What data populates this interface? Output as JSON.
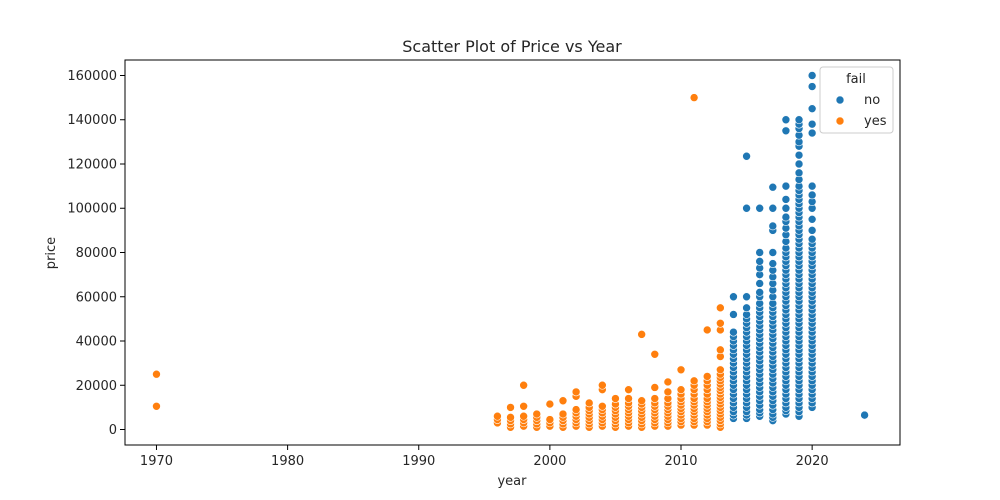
{
  "chart_data": {
    "type": "scatter",
    "title": "Scatter Plot of Price vs Year",
    "xlabel": "year",
    "ylabel": "price",
    "xlim": [
      1967.6,
      2026.7
    ],
    "ylim": [
      -7000,
      167000
    ],
    "xticks": [
      1970,
      1980,
      1990,
      2000,
      2010,
      2020
    ],
    "yticks": [
      0,
      20000,
      40000,
      60000,
      80000,
      100000,
      120000,
      140000,
      160000
    ],
    "grid": false,
    "legend": {
      "title": "fail",
      "placement": "top-right"
    },
    "series": [
      {
        "name": "no",
        "color": "#1f77b4",
        "columns": [
          {
            "year": 2014,
            "values": [
              5000,
              6500,
              8000,
              10000,
              12000,
              14000,
              16000,
              18000,
              20000,
              22000,
              24000,
              26000,
              28000,
              30000,
              32000,
              34000,
              36000,
              38000,
              40000,
              42000,
              44000,
              52000,
              60000
            ]
          },
          {
            "year": 2015,
            "values": [
              5000,
              6500,
              8000,
              10000,
              12000,
              14000,
              16000,
              18000,
              20000,
              22000,
              24000,
              26000,
              28000,
              30000,
              32000,
              34000,
              36000,
              38000,
              40000,
              42000,
              44000,
              46000,
              48000,
              50000,
              52000,
              55000,
              60000,
              100000,
              123500
            ]
          },
          {
            "year": 2016,
            "values": [
              6000,
              7500,
              9000,
              11000,
              13000,
              15000,
              17000,
              19000,
              21000,
              23000,
              25000,
              27000,
              29000,
              31000,
              33000,
              35000,
              37000,
              39000,
              41000,
              43000,
              45000,
              47000,
              49000,
              51000,
              53000,
              55000,
              57000,
              60000,
              62000,
              66000,
              70000,
              73000,
              76000,
              80000,
              100000
            ]
          },
          {
            "year": 2017,
            "values": [
              4000,
              5500,
              7000,
              9000,
              11000,
              13000,
              15000,
              17000,
              19000,
              21000,
              23000,
              25000,
              27000,
              29000,
              31000,
              33000,
              35000,
              37000,
              39000,
              41000,
              43000,
              45000,
              47000,
              49000,
              51000,
              53000,
              55000,
              57000,
              60000,
              63000,
              66000,
              69000,
              72000,
              75000,
              80000,
              90000,
              92000,
              100000,
              109500
            ]
          },
          {
            "year": 2018,
            "values": [
              7000,
              8500,
              10000,
              12000,
              14000,
              16000,
              18000,
              20000,
              22000,
              24000,
              26000,
              28000,
              30000,
              32000,
              34000,
              36000,
              38000,
              40000,
              42000,
              44000,
              46000,
              48000,
              50000,
              52000,
              54000,
              56000,
              58000,
              60000,
              62000,
              64000,
              66000,
              68000,
              70000,
              72000,
              74000,
              76000,
              78000,
              80000,
              82000,
              85000,
              88000,
              91000,
              94000,
              96000,
              100000,
              104000,
              110000,
              135000,
              140000
            ]
          },
          {
            "year": 2019,
            "values": [
              6000,
              8000,
              10000,
              12000,
              14000,
              16000,
              18000,
              20000,
              22000,
              24000,
              26000,
              28000,
              30000,
              32000,
              34000,
              36000,
              38000,
              40000,
              42000,
              44000,
              46000,
              48000,
              50000,
              52000,
              54000,
              56000,
              58000,
              60000,
              62000,
              64000,
              66000,
              68000,
              70000,
              72000,
              74000,
              76000,
              78000,
              80000,
              82000,
              84000,
              86000,
              88000,
              90000,
              92000,
              94000,
              96000,
              98000,
              100000,
              102000,
              104000,
              106000,
              108000,
              110000,
              113000,
              116000,
              120000,
              124000,
              128000,
              130000,
              133000,
              136000,
              138000,
              140000
            ]
          },
          {
            "year": 2020,
            "values": [
              10000,
              12000,
              14000,
              16000,
              18000,
              20000,
              22000,
              24000,
              26000,
              28000,
              30000,
              32000,
              34000,
              36000,
              38000,
              40000,
              42000,
              44000,
              46000,
              48000,
              50000,
              52000,
              54000,
              56000,
              58000,
              60000,
              62000,
              64000,
              66000,
              68000,
              70000,
              72000,
              74000,
              76000,
              78000,
              80000,
              82000,
              84000,
              86000,
              90000,
              95000,
              100000,
              103000,
              106000,
              110000,
              134000,
              138000,
              145000,
              155000,
              160000
            ]
          },
          {
            "year": 2024,
            "values": [
              6500
            ]
          }
        ]
      },
      {
        "name": "yes",
        "color": "#ff7f0e",
        "columns": [
          {
            "year": 1970,
            "values": [
              10500,
              25000
            ]
          },
          {
            "year": 1996,
            "values": [
              3000,
              4500,
              6000
            ]
          },
          {
            "year": 1997,
            "values": [
              1000,
              2500,
              4000,
              5500,
              10000
            ]
          },
          {
            "year": 1998,
            "values": [
              1500,
              3000,
              4500,
              6000,
              10500,
              20000
            ]
          },
          {
            "year": 1999,
            "values": [
              1000,
              2500,
              4000,
              5500,
              7000
            ]
          },
          {
            "year": 2000,
            "values": [
              1500,
              3000,
              4500,
              11500
            ]
          },
          {
            "year": 2001,
            "values": [
              1000,
              2500,
              4000,
              5500,
              7000,
              13000
            ]
          },
          {
            "year": 2002,
            "values": [
              1500,
              3000,
              4500,
              6000,
              7500,
              9000,
              15000,
              17000
            ]
          },
          {
            "year": 2003,
            "values": [
              1000,
              2500,
              4000,
              5500,
              7000,
              8500,
              10000,
              12000
            ]
          },
          {
            "year": 2004,
            "values": [
              1500,
              3000,
              4500,
              6000,
              7500,
              9000,
              10500,
              18000,
              20000
            ]
          },
          {
            "year": 2005,
            "values": [
              1000,
              2500,
              4000,
              5500,
              7000,
              8500,
              10000,
              11500,
              14000
            ]
          },
          {
            "year": 2006,
            "values": [
              1500,
              3000,
              4500,
              6000,
              7500,
              9000,
              10500,
              12000,
              14000,
              18000
            ]
          },
          {
            "year": 2007,
            "values": [
              1000,
              2500,
              4000,
              5500,
              7000,
              8500,
              10000,
              11500,
              13000,
              43000
            ]
          },
          {
            "year": 2008,
            "values": [
              1500,
              3000,
              4500,
              6000,
              7500,
              9000,
              10500,
              12000,
              14000,
              19000,
              34000
            ]
          },
          {
            "year": 2009,
            "values": [
              1500,
              3000,
              4500,
              6000,
              7500,
              9000,
              10500,
              12000,
              14000,
              17000,
              21500
            ]
          },
          {
            "year": 2010,
            "values": [
              2000,
              3500,
              5000,
              6500,
              8000,
              9500,
              11000,
              12500,
              14000,
              16000,
              18000,
              27000
            ]
          },
          {
            "year": 2011,
            "values": [
              2000,
              3500,
              5000,
              6500,
              8000,
              9500,
              11000,
              12500,
              14000,
              16000,
              18000,
              20000,
              22000,
              150000
            ]
          },
          {
            "year": 2012,
            "values": [
              2000,
              3500,
              5000,
              6500,
              8000,
              9500,
              11000,
              12500,
              14000,
              16000,
              18000,
              20000,
              22000,
              24000,
              45000
            ]
          },
          {
            "year": 2013,
            "values": [
              1000,
              2500,
              4000,
              5500,
              7000,
              8500,
              10000,
              11500,
              13000,
              14500,
              16000,
              17500,
              19000,
              20500,
              22000,
              23500,
              25000,
              27000,
              33000,
              36000,
              45000,
              48000,
              55000
            ]
          }
        ]
      }
    ]
  }
}
